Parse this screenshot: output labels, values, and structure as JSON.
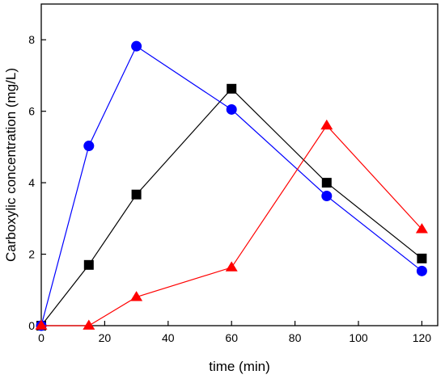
{
  "chart_data": {
    "type": "line",
    "title": "",
    "xlabel": "time (min)",
    "ylabel": "Carboxylic concentration (mg/L)",
    "xlim": [
      0,
      125
    ],
    "ylim": [
      0,
      9
    ],
    "xticks": [
      0,
      20,
      40,
      60,
      80,
      100,
      120
    ],
    "yticks": [
      0,
      2,
      4,
      6,
      8
    ],
    "grid": false,
    "legend": "none",
    "series": [
      {
        "color": "#000000",
        "marker": "square",
        "x": [
          0,
          15,
          30,
          60,
          90,
          120
        ],
        "y": [
          0,
          1.7,
          3.67,
          6.63,
          4.0,
          1.88
        ]
      },
      {
        "color": "#0000ff",
        "marker": "circle",
        "x": [
          0,
          15,
          30,
          60,
          90,
          120
        ],
        "y": [
          0,
          5.03,
          7.82,
          6.05,
          3.63,
          1.53
        ]
      },
      {
        "color": "#ff0000",
        "marker": "triangle",
        "x": [
          0,
          15,
          30,
          60,
          90,
          120
        ],
        "y": [
          0,
          0,
          0.8,
          1.63,
          5.6,
          2.7
        ]
      }
    ]
  }
}
